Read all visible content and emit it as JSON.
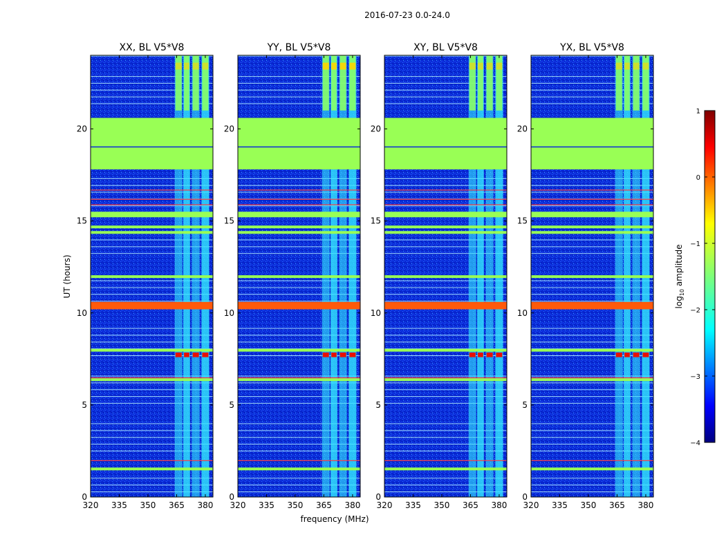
{
  "figure_title": "2016-07-23 0.0-24.0",
  "colors": {
    "background_low": "#0a2bd8",
    "flag_fill": "#99ff55",
    "rfi_orange": "#ff5a0a",
    "line_light": "#b8f5ff",
    "band_cyan": "#33e8ff",
    "band_green": "#88ff66",
    "band_yellow": "#ffd400",
    "hot_red": "#e81000",
    "red_line": "#ff4040"
  },
  "chart_data": {
    "type": "heatmap",
    "shared_y_label": "UT (hours)",
    "shared_x_label": "frequency (MHz)",
    "x_ticks": [
      320,
      335,
      350,
      365,
      380
    ],
    "x_range": [
      320,
      384
    ],
    "y_ticks": [
      0,
      5,
      10,
      15,
      20
    ],
    "y_range": [
      0,
      24
    ],
    "colorbar": {
      "label": "log10 amplitude",
      "label_base": "log",
      "label_sub": "10",
      "label_rest": " amplitude",
      "ticks": [
        "1",
        "0",
        "−1",
        "−2",
        "−3",
        "−4"
      ],
      "tick_values": [
        1,
        0,
        -1,
        -2,
        -3,
        -4
      ],
      "range": [
        -4,
        1
      ],
      "colormap": "jet"
    },
    "panels": [
      {
        "title": "XX, BL V5*V8",
        "bands": [
          [
            364,
            368
          ],
          [
            368.5,
            372
          ],
          [
            373,
            377
          ],
          [
            378,
            382
          ]
        ]
      },
      {
        "title": "YY, BL V5*V8",
        "bands": [
          [
            364,
            368
          ],
          [
            368.5,
            372
          ],
          [
            373,
            377
          ],
          [
            378,
            382
          ]
        ]
      },
      {
        "title": "XY, BL V5*V8",
        "bands": [
          [
            364,
            368
          ],
          [
            368.5,
            372
          ],
          [
            373,
            377
          ],
          [
            378,
            382
          ]
        ]
      },
      {
        "title": "YX, BL V5*V8",
        "bands": [
          [
            364,
            368
          ],
          [
            368.5,
            372
          ],
          [
            373,
            377
          ],
          [
            378,
            382
          ]
        ]
      }
    ],
    "flagged_ut_hours": [
      {
        "from": 17.8,
        "to": 20.6
      },
      {
        "from": 15.2,
        "to": 15.5
      },
      {
        "from": 14.6,
        "to": 14.75
      },
      {
        "from": 14.3,
        "to": 14.45
      },
      {
        "from": 11.9,
        "to": 12.05
      },
      {
        "from": 7.9,
        "to": 8.05
      },
      {
        "from": 6.3,
        "to": 6.45
      },
      {
        "from": 1.45,
        "to": 1.6
      }
    ],
    "rfi_ut_hours": {
      "from": 10.2,
      "to": 10.6
    },
    "red_line_ut_hours": [
      16.7,
      16.2,
      15.9,
      6.5,
      2.0
    ],
    "hot_ut_hours": {
      "from": 7.6,
      "to": 7.85
    }
  }
}
